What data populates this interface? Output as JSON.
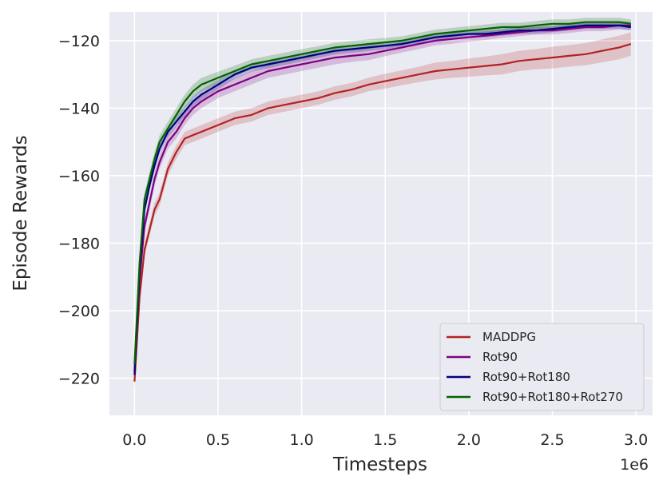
{
  "chart_data": {
    "type": "line",
    "title": "",
    "xlabel": "Timesteps",
    "ylabel": "Episode Rewards",
    "x_offset_label": "1e6",
    "xlim": [
      -0.15,
      3.1
    ],
    "ylim": [
      -231,
      -111.5
    ],
    "xticks": [
      0.0,
      0.5,
      1.0,
      1.5,
      2.0,
      2.5,
      3.0
    ],
    "xtick_labels": [
      "0.0",
      "0.5",
      "1.0",
      "1.5",
      "2.0",
      "2.5",
      "3.0"
    ],
    "yticks": [
      -220,
      -200,
      -180,
      -160,
      -140,
      -120
    ],
    "ytick_labels": [
      "−220",
      "−200",
      "−180",
      "−160",
      "−140",
      "−120"
    ],
    "grid": true,
    "legend_position": "bottom-right",
    "series": [
      {
        "name": "MADDPG",
        "color": "#b22222",
        "x": [
          0.0,
          0.03,
          0.06,
          0.09,
          0.12,
          0.15,
          0.2,
          0.25,
          0.3,
          0.35,
          0.4,
          0.5,
          0.6,
          0.7,
          0.8,
          0.9,
          1.0,
          1.1,
          1.2,
          1.3,
          1.4,
          1.5,
          1.6,
          1.7,
          1.8,
          1.9,
          2.0,
          2.1,
          2.2,
          2.3,
          2.4,
          2.5,
          2.6,
          2.7,
          2.8,
          2.9,
          2.97
        ],
        "values": [
          -221,
          -196,
          -182,
          -176,
          -170,
          -167,
          -158,
          -153,
          -149,
          -148,
          -147,
          -145,
          -143,
          -142,
          -140,
          -139,
          -138,
          -137,
          -135.5,
          -134.5,
          -133,
          -132,
          -131,
          -130,
          -129,
          -128.5,
          -128,
          -127.5,
          -127,
          -126,
          -125.5,
          -125,
          -124.5,
          -124,
          -123,
          -122,
          -121
        ],
        "band": [
          2.5,
          2.2,
          2.0,
          2.0,
          2.0,
          2.0,
          2.0,
          2.0,
          2.0,
          2.0,
          2.0,
          2.0,
          2.0,
          2.0,
          2.0,
          2.0,
          2.0,
          2.0,
          2.0,
          2.0,
          2.0,
          2.2,
          2.2,
          2.3,
          2.5,
          2.5,
          2.7,
          2.8,
          3.0,
          3.0,
          3.0,
          3.2,
          3.2,
          3.3,
          3.4,
          3.5,
          3.5
        ]
      },
      {
        "name": "Rot90",
        "color": "#800080",
        "x": [
          0.0,
          0.03,
          0.06,
          0.09,
          0.12,
          0.15,
          0.2,
          0.25,
          0.3,
          0.35,
          0.4,
          0.5,
          0.6,
          0.7,
          0.8,
          0.9,
          1.0,
          1.1,
          1.2,
          1.3,
          1.4,
          1.5,
          1.6,
          1.7,
          1.8,
          1.9,
          2.0,
          2.1,
          2.2,
          2.3,
          2.4,
          2.5,
          2.6,
          2.7,
          2.8,
          2.9,
          2.97
        ],
        "values": [
          -218,
          -191,
          -175,
          -168,
          -161,
          -156,
          -150,
          -147,
          -143,
          -140,
          -138,
          -135,
          -133,
          -131,
          -129,
          -128,
          -127,
          -126,
          -125,
          -124.5,
          -124,
          -123,
          -122,
          -121,
          -120,
          -119.5,
          -119,
          -118.5,
          -118,
          -117.5,
          -117,
          -117,
          -116.5,
          -116,
          -116,
          -115.5,
          -115.5
        ],
        "band": [
          2.0,
          2.0,
          2.0,
          2.0,
          2.0,
          2.0,
          2.0,
          2.0,
          2.0,
          2.0,
          2.0,
          2.0,
          2.0,
          2.0,
          2.0,
          2.0,
          2.0,
          2.0,
          2.0,
          1.8,
          1.8,
          1.6,
          1.5,
          1.5,
          1.4,
          1.4,
          1.3,
          1.3,
          1.2,
          1.2,
          1.2,
          1.2,
          1.2,
          1.2,
          1.2,
          1.2,
          1.2
        ]
      },
      {
        "name": "Rot90+Rot180",
        "color": "#000080",
        "x": [
          0.0,
          0.03,
          0.06,
          0.09,
          0.12,
          0.15,
          0.2,
          0.25,
          0.3,
          0.35,
          0.4,
          0.5,
          0.6,
          0.7,
          0.8,
          0.9,
          1.0,
          1.1,
          1.2,
          1.3,
          1.4,
          1.5,
          1.6,
          1.7,
          1.8,
          1.9,
          2.0,
          2.1,
          2.2,
          2.3,
          2.4,
          2.5,
          2.6,
          2.7,
          2.8,
          2.9,
          2.97
        ],
        "values": [
          -219,
          -188,
          -170,
          -163,
          -157,
          -152,
          -147,
          -144,
          -141,
          -138,
          -136,
          -133,
          -130,
          -128,
          -127,
          -126,
          -125,
          -124,
          -123,
          -122.5,
          -122,
          -121.5,
          -121,
          -120,
          -119,
          -118.5,
          -118,
          -118,
          -117.5,
          -117,
          -117,
          -116.5,
          -116,
          -115.5,
          -115.5,
          -115.5,
          -116
        ],
        "band": [
          1.5,
          1.5,
          1.5,
          1.5,
          1.5,
          1.5,
          1.5,
          1.5,
          1.5,
          1.5,
          1.5,
          1.4,
          1.3,
          1.2,
          1.2,
          1.2,
          1.2,
          1.1,
          1.1,
          1.1,
          1.1,
          1.0,
          1.0,
          1.0,
          1.0,
          1.0,
          1.0,
          1.0,
          1.0,
          1.0,
          1.0,
          1.0,
          1.0,
          1.0,
          1.0,
          1.0,
          1.0
        ]
      },
      {
        "name": "Rot90+Rot180+Rot270",
        "color": "#006400",
        "x": [
          0.0,
          0.03,
          0.06,
          0.09,
          0.12,
          0.15,
          0.2,
          0.25,
          0.3,
          0.35,
          0.4,
          0.5,
          0.6,
          0.7,
          0.8,
          0.9,
          1.0,
          1.1,
          1.2,
          1.3,
          1.4,
          1.5,
          1.6,
          1.7,
          1.8,
          1.9,
          2.0,
          2.1,
          2.2,
          2.3,
          2.4,
          2.5,
          2.6,
          2.7,
          2.8,
          2.9,
          2.97
        ],
        "values": [
          -216,
          -186,
          -167,
          -161,
          -155,
          -150,
          -146,
          -142,
          -138,
          -135,
          -133,
          -131,
          -129,
          -127,
          -126,
          -125,
          -124,
          -123,
          -122,
          -121.5,
          -121,
          -120.5,
          -120,
          -119,
          -118,
          -117.5,
          -117,
          -116.5,
          -116,
          -116,
          -115.5,
          -115,
          -115,
          -114.5,
          -114.5,
          -114.5,
          -115
        ],
        "band": [
          2.0,
          2.0,
          2.0,
          2.0,
          2.0,
          2.0,
          2.0,
          2.0,
          2.0,
          2.0,
          2.0,
          1.8,
          1.6,
          1.5,
          1.5,
          1.5,
          1.5,
          1.4,
          1.4,
          1.4,
          1.4,
          1.3,
          1.3,
          1.3,
          1.3,
          1.3,
          1.3,
          1.3,
          1.3,
          1.3,
          1.3,
          1.3,
          1.3,
          1.3,
          1.3,
          1.3,
          1.3
        ]
      }
    ]
  },
  "colors": {
    "plot_background": "#eaeaf2",
    "grid": "#ffffff",
    "legend_background": "#eaeaf2",
    "legend_border": "#cccccc"
  }
}
